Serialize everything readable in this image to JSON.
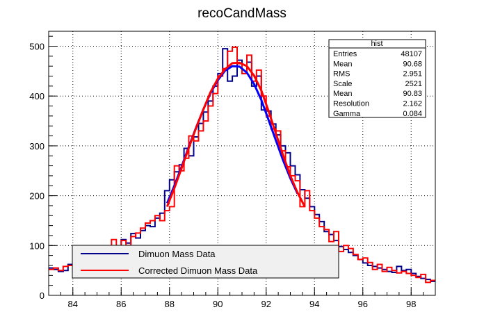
{
  "chart_data": {
    "type": "line",
    "title": "recoCandMass",
    "xlabel": "",
    "ylabel": "",
    "xlim": [
      83,
      99
    ],
    "ylim": [
      0,
      530
    ],
    "x_ticks": [
      84,
      86,
      88,
      90,
      92,
      94,
      96,
      98
    ],
    "y_ticks": [
      0,
      100,
      200,
      300,
      400,
      500
    ],
    "grid": true,
    "bin_width": 0.2,
    "series": [
      {
        "name": "Dimuon Mass Data",
        "color": "#00008b",
        "style": "step",
        "x": [
          83.0,
          83.2,
          83.4,
          83.6,
          83.8,
          84.0,
          84.2,
          84.4,
          84.6,
          84.8,
          85.0,
          85.2,
          85.4,
          85.6,
          85.8,
          86.0,
          86.2,
          86.4,
          86.6,
          86.8,
          87.0,
          87.2,
          87.4,
          87.6,
          87.8,
          88.0,
          88.2,
          88.4,
          88.6,
          88.8,
          89.0,
          89.2,
          89.4,
          89.6,
          89.8,
          90.0,
          90.2,
          90.4,
          90.6,
          90.8,
          91.0,
          91.2,
          91.4,
          91.6,
          91.8,
          92.0,
          92.2,
          92.4,
          92.6,
          92.8,
          93.0,
          93.2,
          93.4,
          93.6,
          93.8,
          94.0,
          94.2,
          94.4,
          94.6,
          94.8,
          95.0,
          95.2,
          95.4,
          95.6,
          95.8,
          96.0,
          96.2,
          96.4,
          96.6,
          96.8,
          97.0,
          97.2,
          97.4,
          97.6,
          97.8,
          98.0,
          98.2,
          98.4,
          98.6,
          98.8
        ],
        "values": [
          55,
          52,
          48,
          50,
          62,
          60,
          66,
          72,
          76,
          78,
          82,
          86,
          90,
          95,
          98,
          112,
          105,
          124,
          115,
          130,
          140,
          138,
          155,
          165,
          210,
          232,
          248,
          262,
          295,
          280,
          318,
          345,
          368,
          390,
          420,
          445,
          495,
          430,
          440,
          472,
          445,
          468,
          420,
          440,
          372,
          370,
          344,
          322,
          300,
          286,
          260,
          242,
          212,
          195,
          178,
          162,
          148,
          128,
          122,
          110,
          98,
          92,
          86,
          80,
          72,
          65,
          60,
          58,
          55,
          52,
          48,
          46,
          58,
          50,
          52,
          44,
          38,
          34,
          32,
          28
        ]
      },
      {
        "name": "Corrected Dimuon Mass Data",
        "color": "#ff0000",
        "style": "step",
        "x": [
          83.0,
          83.2,
          83.4,
          83.6,
          83.8,
          84.0,
          84.2,
          84.4,
          84.6,
          84.8,
          85.0,
          85.2,
          85.4,
          85.6,
          85.8,
          86.0,
          86.2,
          86.4,
          86.6,
          86.8,
          87.0,
          87.2,
          87.4,
          87.6,
          87.8,
          88.0,
          88.2,
          88.4,
          88.6,
          88.8,
          89.0,
          89.2,
          89.4,
          89.6,
          89.8,
          90.0,
          90.2,
          90.4,
          90.6,
          90.8,
          91.0,
          91.2,
          91.4,
          91.6,
          91.8,
          92.0,
          92.2,
          92.4,
          92.6,
          92.8,
          93.0,
          93.2,
          93.4,
          93.6,
          93.8,
          94.0,
          94.2,
          94.4,
          94.6,
          94.8,
          95.0,
          95.2,
          95.4,
          95.6,
          95.8,
          96.0,
          96.2,
          96.4,
          96.6,
          96.8,
          97.0,
          97.2,
          97.4,
          97.6,
          97.8,
          98.0,
          98.2,
          98.4,
          98.6,
          98.8
        ],
        "values": [
          52,
          55,
          50,
          58,
          60,
          64,
          68,
          70,
          74,
          80,
          84,
          88,
          92,
          112,
          94,
          110,
          100,
          118,
          125,
          135,
          145,
          150,
          160,
          150,
          170,
          178,
          260,
          250,
          275,
          320,
          310,
          330,
          350,
          380,
          405,
          440,
          455,
          490,
          498,
          465,
          445,
          482,
          430,
          452,
          400,
          360,
          334,
          330,
          290,
          258,
          240,
          230,
          178,
          210,
          170,
          155,
          138,
          132,
          108,
          128,
          88,
          100,
          94,
          82,
          72,
          75,
          66,
          52,
          62,
          48,
          56,
          50,
          45,
          48,
          44,
          40,
          36,
          42,
          26,
          30
        ]
      },
      {
        "name": "Dimuon Mass Data (fit)",
        "color": "#0000ff",
        "style": "curve",
        "x": [
          87.9,
          88.2,
          88.5,
          88.8,
          89.1,
          89.4,
          89.7,
          90.0,
          90.3,
          90.6,
          90.9,
          91.2,
          91.5,
          91.8,
          92.1,
          92.4,
          92.7,
          93.0,
          93.3
        ],
        "values": [
          185,
          220,
          258,
          298,
          337,
          373,
          406,
          432,
          451,
          460,
          459,
          447,
          424,
          392,
          352,
          311,
          271,
          235,
          204
        ]
      },
      {
        "name": "Corrected Dimuon Mass Data (fit)",
        "color": "#ff0000",
        "style": "curve",
        "x": [
          87.9,
          88.2,
          88.5,
          88.8,
          89.1,
          89.4,
          89.7,
          90.0,
          90.3,
          90.6,
          90.9,
          91.2,
          91.5,
          91.8,
          92.1,
          92.4,
          92.7,
          93.0,
          93.3,
          93.6
        ],
        "values": [
          178,
          215,
          255,
          296,
          336,
          373,
          408,
          435,
          454,
          466,
          467,
          460,
          441,
          411,
          370,
          325,
          281,
          240,
          206,
          178
        ]
      }
    ],
    "stats_box": {
      "title": "hist",
      "rows": [
        {
          "label": "Entries",
          "value": "48107"
        },
        {
          "label": "Mean",
          "value": "90.68"
        },
        {
          "label": "RMS",
          "value": "2.951"
        },
        {
          "label": "Scale",
          "value": "2521"
        },
        {
          "label": "Mean",
          "value": "90.83"
        },
        {
          "label": "Resolution",
          "value": "2.162"
        },
        {
          "label": "Gamma",
          "value": "0.084"
        }
      ]
    },
    "legend": {
      "placement": "bottom-left",
      "entries": [
        {
          "label": "Dimuon Mass Data",
          "color": "#00008b"
        },
        {
          "label": "Corrected Dimuon Mass Data",
          "color": "#ff0000"
        }
      ]
    }
  }
}
